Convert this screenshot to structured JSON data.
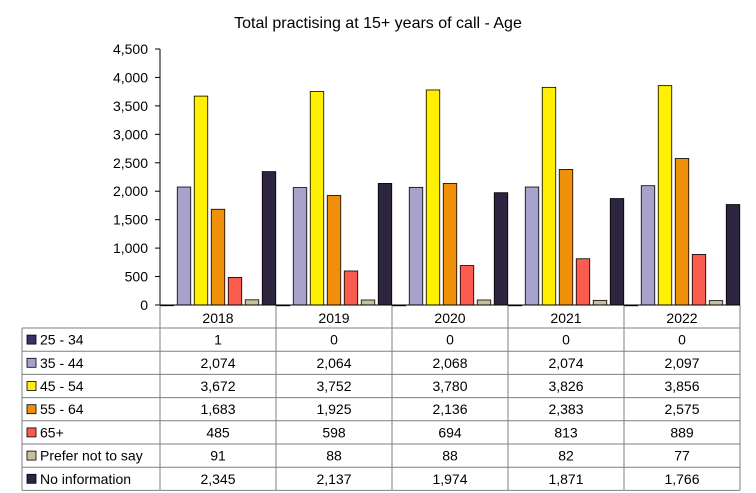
{
  "chart_data": {
    "type": "bar",
    "title": "Total practising at 15+ years of call - Age",
    "categories": [
      "2018",
      "2019",
      "2020",
      "2021",
      "2022"
    ],
    "ylim": [
      0,
      4500
    ],
    "y_ticks": [
      "0",
      "500",
      "1,000",
      "1,500",
      "2,000",
      "2,500",
      "3,000",
      "3,500",
      "4,000",
      "4,500"
    ],
    "grid": false,
    "legend": "data-table-below",
    "series": [
      {
        "name": "25 - 34",
        "color": "#3d3068",
        "values": [
          1,
          0,
          0,
          0,
          0
        ],
        "labels": [
          "1",
          "0",
          "0",
          "0",
          "0"
        ]
      },
      {
        "name": "35 - 44",
        "color": "#a6a2cc",
        "values": [
          2074,
          2064,
          2068,
          2074,
          2097
        ],
        "labels": [
          "2,074",
          "2,064",
          "2,068",
          "2,074",
          "2,097"
        ]
      },
      {
        "name": "45 - 54",
        "color": "#ffef00",
        "values": [
          3672,
          3752,
          3780,
          3826,
          3856
        ],
        "labels": [
          "3,672",
          "3,752",
          "3,780",
          "3,826",
          "3,856"
        ]
      },
      {
        "name": "55 - 64",
        "color": "#f0900a",
        "values": [
          1683,
          1925,
          2136,
          2383,
          2575
        ],
        "labels": [
          "1,683",
          "1,925",
          "2,136",
          "2,383",
          "2,575"
        ]
      },
      {
        "name": "65+",
        "color": "#fa5c50",
        "values": [
          485,
          598,
          694,
          813,
          889
        ],
        "labels": [
          "485",
          "598",
          "694",
          "813",
          "889"
        ]
      },
      {
        "name": "Prefer not to say",
        "color": "#c8bf9f",
        "values": [
          91,
          88,
          88,
          82,
          77
        ],
        "labels": [
          "91",
          "88",
          "88",
          "82",
          "77"
        ]
      },
      {
        "name": "No information",
        "color": "#2d2440",
        "values": [
          2345,
          2137,
          1974,
          1871,
          1766
        ],
        "labels": [
          "2,345",
          "2,137",
          "1,974",
          "1,871",
          "1,766"
        ]
      }
    ]
  }
}
